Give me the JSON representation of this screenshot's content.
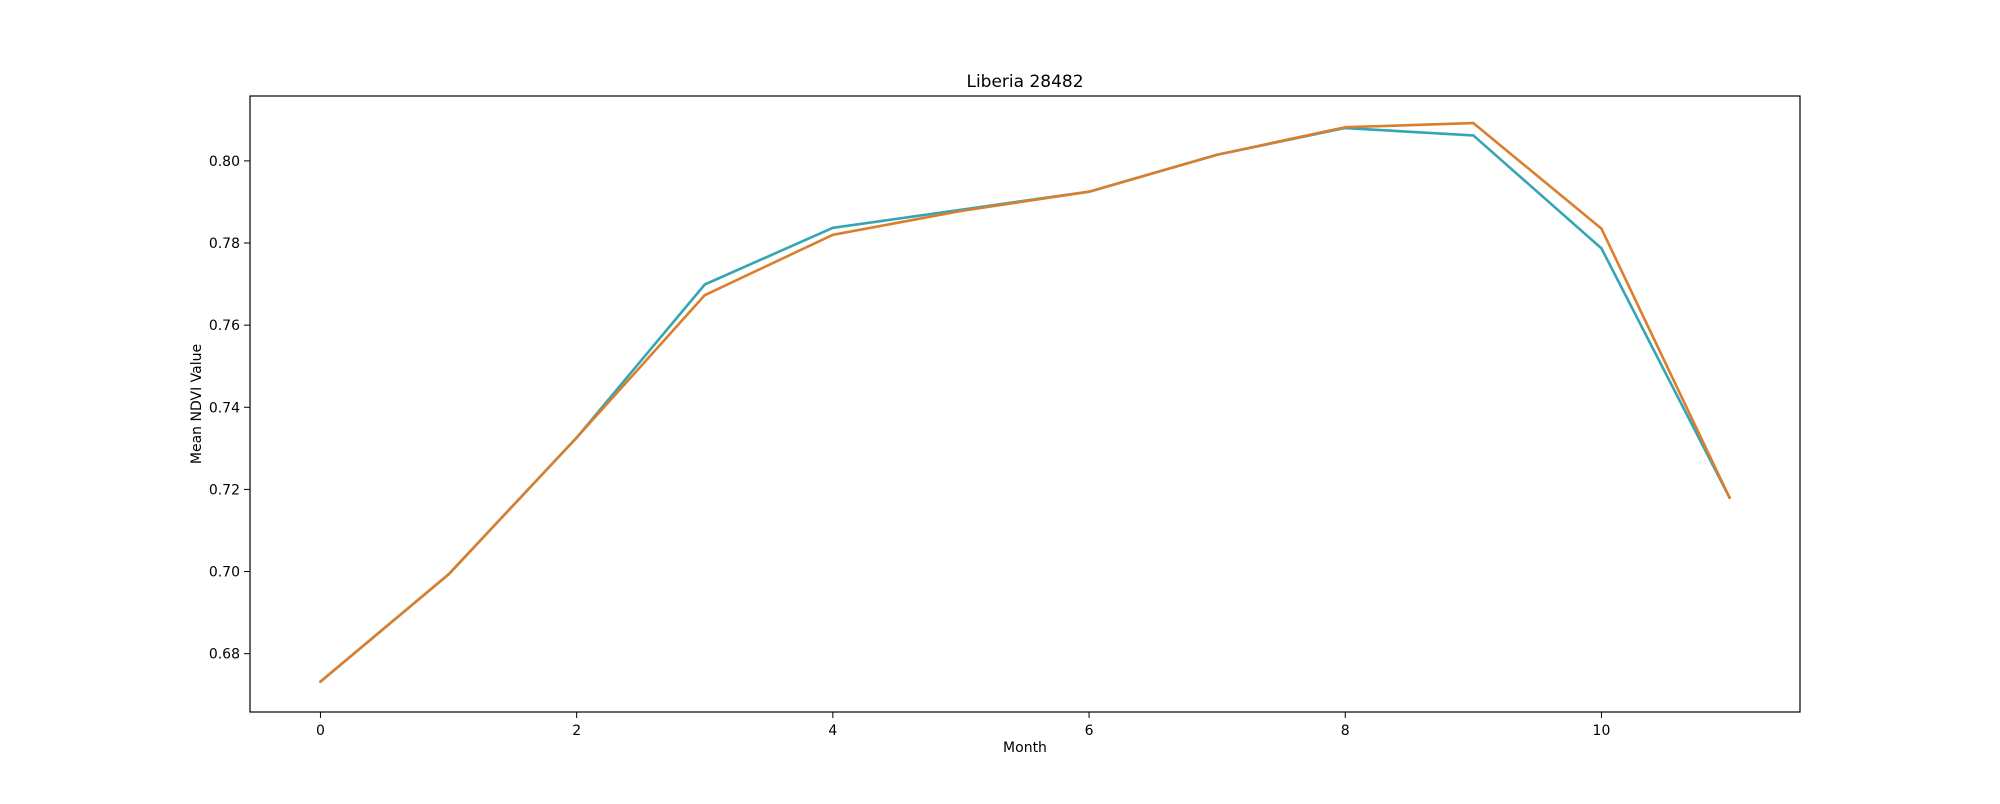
{
  "chart_data": {
    "type": "line",
    "title": "Liberia 28482",
    "xlabel": "Month",
    "ylabel": "Mean NDVI Value",
    "x": [
      0,
      1,
      2,
      3,
      4,
      5,
      6,
      7,
      8,
      9,
      10,
      11
    ],
    "series": [
      {
        "color": "#36a5b3",
        "values": [
          0.6732,
          0.6993,
          0.7326,
          0.7699,
          0.7837,
          0.7881,
          0.7925,
          0.8015,
          0.808,
          0.8062,
          0.7787,
          0.718
        ]
      },
      {
        "color": "#d97f2e",
        "values": [
          0.6732,
          0.6993,
          0.7326,
          0.7673,
          0.782,
          0.7878,
          0.7925,
          0.8015,
          0.8082,
          0.8092,
          0.7835,
          0.718
        ]
      }
    ],
    "xlim": [
      -0.55,
      11.55
    ],
    "ylim": [
      0.6658,
      0.8158
    ],
    "xticks": [
      0,
      2,
      4,
      6,
      8,
      10
    ],
    "yticks": [
      0.68,
      0.7,
      0.72,
      0.74,
      0.76,
      0.78,
      0.8
    ],
    "ytick_labels": [
      "0.68",
      "0.70",
      "0.72",
      "0.74",
      "0.76",
      "0.78",
      "0.80"
    ],
    "grid": false,
    "legend": "none"
  }
}
